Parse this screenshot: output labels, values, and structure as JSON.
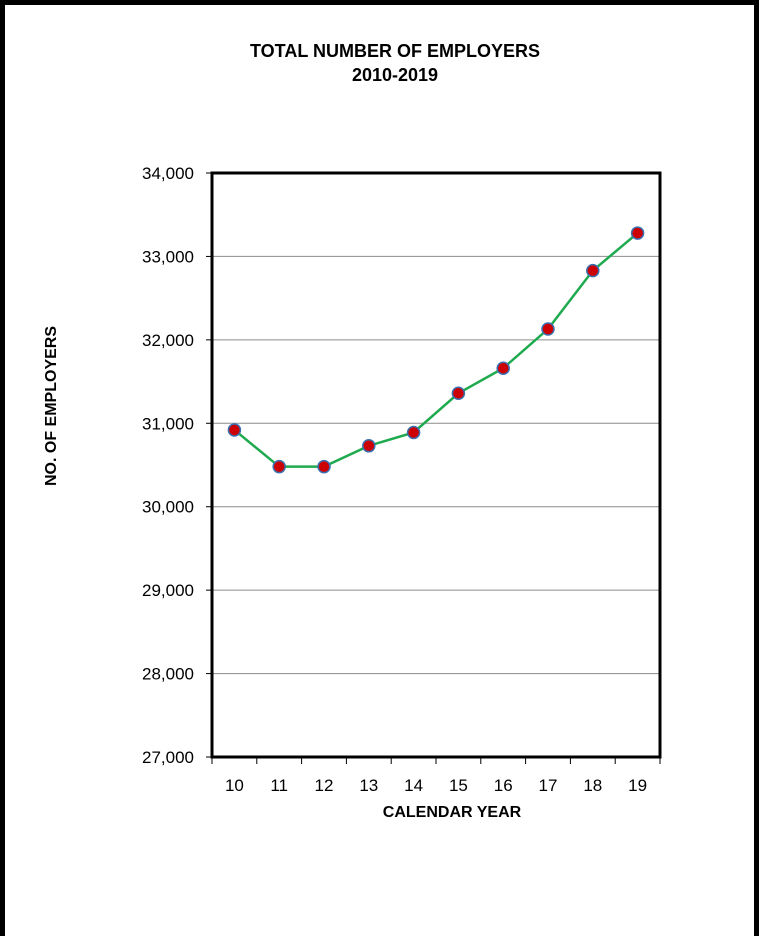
{
  "chart_data": {
    "type": "line",
    "title": "TOTAL NUMBER OF EMPLOYERS",
    "subtitle": "2010-2019",
    "xlabel": "CALENDAR YEAR",
    "ylabel": "NO. OF EMPLOYERS",
    "categories": [
      "10",
      "11",
      "12",
      "13",
      "14",
      "15",
      "16",
      "17",
      "18",
      "19"
    ],
    "series": [
      {
        "values": [
          30920,
          30480,
          30480,
          30730,
          30890,
          31360,
          31660,
          32130,
          32830,
          33280
        ]
      }
    ],
    "ylim": [
      27000,
      34000
    ],
    "yticks": [
      27000,
      28000,
      29000,
      30000,
      31000,
      32000,
      33000,
      34000
    ],
    "ytick_labels": [
      "27,000",
      "28,000",
      "29,000",
      "30,000",
      "31,000",
      "32,000",
      "33,000",
      "34,000"
    ],
    "grid": true,
    "legend": "none",
    "colors": {
      "line": "#1faa4f",
      "marker_fill": "#cc0000",
      "marker_edge": "#3a6fb0",
      "grid": "#8c8c8c",
      "frame": "#000000"
    }
  }
}
